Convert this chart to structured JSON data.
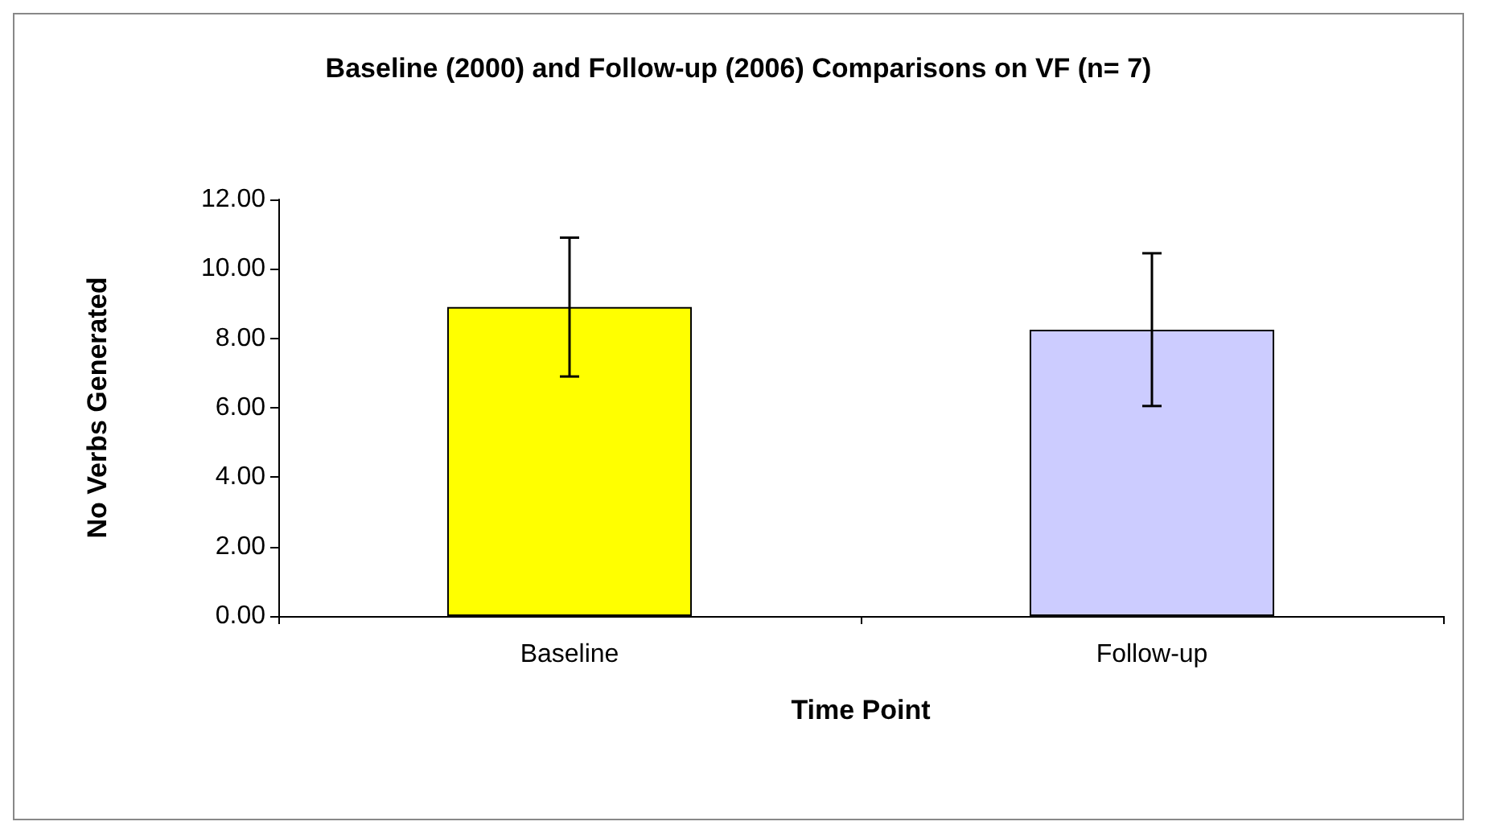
{
  "chart_data": {
    "type": "bar",
    "title": "Baseline (2000) and Follow-up (2006) Comparisons on VF (n= 7)",
    "xlabel": "Time Point",
    "ylabel": "No Verbs Generated",
    "categories": [
      "Baseline",
      "Follow-up"
    ],
    "values": [
      8.9,
      8.25
    ],
    "colors": [
      "#ffff00",
      "#ccccff"
    ],
    "errors": [
      2.0,
      2.2
    ],
    "ylim": [
      0,
      12
    ],
    "yticks": [
      {
        "value": 0,
        "label": "0.00"
      },
      {
        "value": 2,
        "label": "2.00"
      },
      {
        "value": 4,
        "label": "4.00"
      },
      {
        "value": 6,
        "label": "6.00"
      },
      {
        "value": 8,
        "label": "8.00"
      },
      {
        "value": 10,
        "label": "10.00"
      },
      {
        "value": 12,
        "label": "12.00"
      }
    ],
    "grid": false
  }
}
